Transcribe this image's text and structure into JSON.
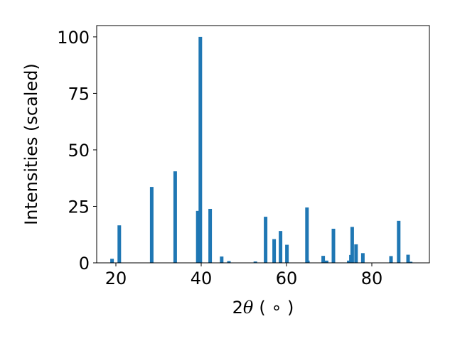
{
  "chart_data": {
    "type": "bar",
    "title": "",
    "xlabel_prefix": "2",
    "xlabel_symbol": "θ",
    "xlabel_unit": "( ∘ )",
    "ylabel": "Intensities (scaled)",
    "xlim": [
      15.5,
      93.5
    ],
    "ylim": [
      0,
      105
    ],
    "grid": false,
    "bar_color": "#1f77b4",
    "xticks": [
      20,
      40,
      60,
      80
    ],
    "yticks": [
      0,
      25,
      50,
      75,
      100
    ],
    "x": [
      19.1,
      20.8,
      28.4,
      33.9,
      39.2,
      39.8,
      42.1,
      44.8,
      46.5,
      52.7,
      55.1,
      57.1,
      58.6,
      60.1,
      64.8,
      65.0,
      68.6,
      69.4,
      71.0,
      74.6,
      75.1,
      75.4,
      76.3,
      77.9,
      84.5,
      86.3,
      88.5,
      89.1
    ],
    "values": [
      1.8,
      16.6,
      33.6,
      40.5,
      23.0,
      100.0,
      23.9,
      2.8,
      0.8,
      0.6,
      20.4,
      10.5,
      14.1,
      8.0,
      24.5,
      1.0,
      3.1,
      1.0,
      15.1,
      1.0,
      3.5,
      15.9,
      8.2,
      4.3,
      3.0,
      18.6,
      3.6,
      0.5
    ]
  }
}
